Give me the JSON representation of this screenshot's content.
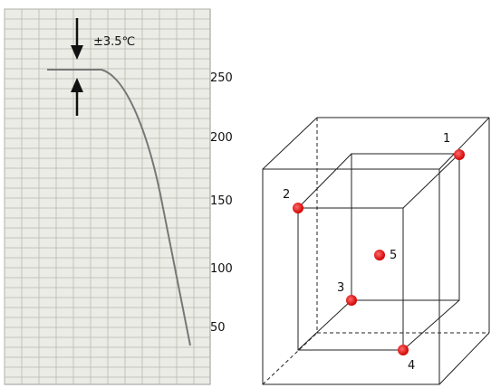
{
  "recorder": {
    "annotation": "±3.5℃",
    "scale_labels": [
      "250",
      "200",
      "150",
      "100",
      "50"
    ]
  },
  "box": {
    "points": [
      {
        "label": "1"
      },
      {
        "label": "2"
      },
      {
        "label": "3"
      },
      {
        "label": "4"
      },
      {
        "label": "5"
      }
    ]
  }
}
